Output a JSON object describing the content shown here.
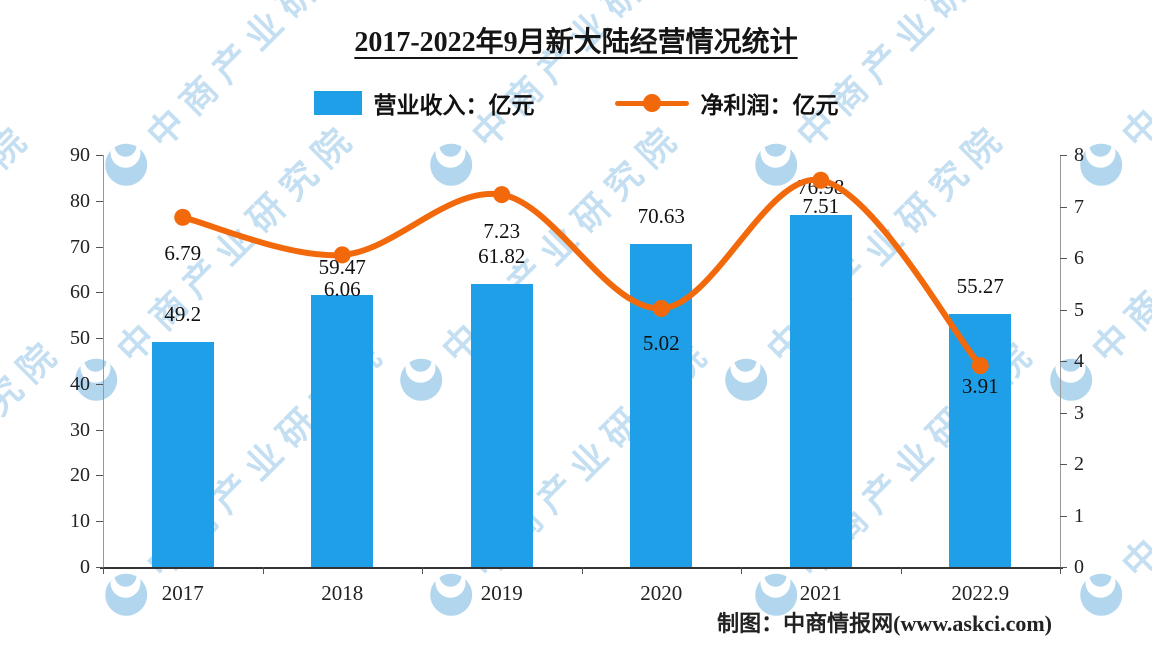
{
  "title": "2017-2022年9月新大陆经营情况统计",
  "legend": [
    {
      "label": "营业收入：亿元",
      "type": "bar",
      "color": "#1e9fe8"
    },
    {
      "label": "净利润：亿元",
      "type": "line",
      "color": "#f2690c"
    }
  ],
  "footer": "制图：中商情报网(www.askci.com)",
  "watermark": {
    "text": "中商产业研究院",
    "color": "#7fb9e4"
  },
  "chart_data": {
    "type": "bar",
    "title": "2017-2022年9月新大陆经营情况统计",
    "categories": [
      "2017",
      "2018",
      "2019",
      "2020",
      "2021",
      "2022.9"
    ],
    "series": [
      {
        "name": "营业收入：亿元",
        "type": "bar",
        "axis": "left",
        "color": "#1e9fe8",
        "values": [
          49.2,
          59.47,
          61.82,
          70.63,
          76.98,
          55.27
        ]
      },
      {
        "name": "净利润：亿元",
        "type": "line",
        "axis": "right",
        "color": "#f2690c",
        "values": [
          6.79,
          6.06,
          7.23,
          5.02,
          7.51,
          3.91
        ]
      }
    ],
    "left_axis": {
      "min": 0,
      "max": 90,
      "step": 10
    },
    "right_axis": {
      "min": 0,
      "max": 8,
      "step": 1
    },
    "grid": false,
    "legend_position": "top",
    "xlabel": "",
    "ylabel_left": "营业收入：亿元",
    "ylabel_right": "净利润：亿元"
  }
}
